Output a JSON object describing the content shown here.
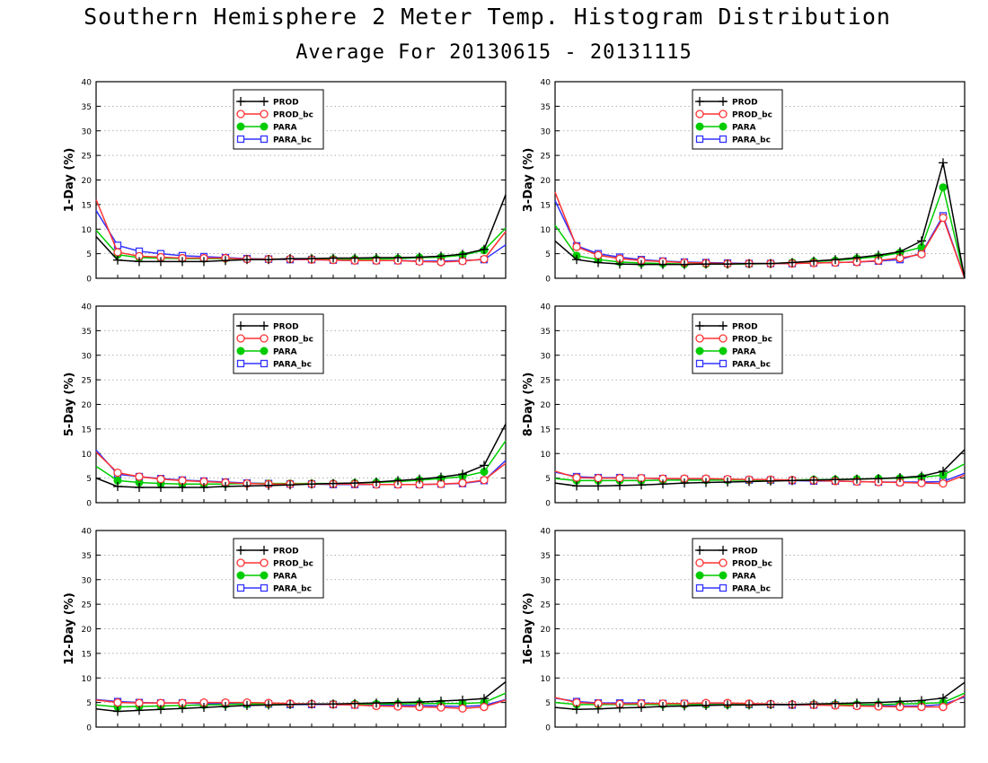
{
  "figure": {
    "title": "Southern Hemisphere 2 Meter Temp. Histogram Distribution",
    "subtitle": "Average For 20130615 - 20131115"
  },
  "legend_entries": [
    "PROD",
    "PROD_bc",
    "PARA",
    "PARA_bc"
  ],
  "series_styles": [
    {
      "name": "PROD",
      "color": "#000000",
      "marker": "plus"
    },
    {
      "name": "PROD_bc",
      "color": "#ff3333",
      "marker": "open-circle"
    },
    {
      "name": "PARA",
      "color": "#00cc00",
      "marker": "filled-circle"
    },
    {
      "name": "PARA_bc",
      "color": "#3333ff",
      "marker": "open-square"
    }
  ],
  "chart_data": [
    {
      "type": "line",
      "ylabel": "1-Day (%)",
      "ylim": [
        0,
        40
      ],
      "yticks": [
        0,
        5,
        10,
        15,
        20,
        25,
        30,
        35,
        40
      ],
      "grid": true,
      "legend_position": "top-center",
      "x": [
        1,
        2,
        3,
        4,
        5,
        6,
        7,
        8,
        9,
        10,
        11,
        12,
        13,
        14,
        15,
        16,
        17,
        18,
        19,
        20
      ],
      "series": [
        {
          "name": "PROD",
          "values": [
            8.5,
            3.7,
            3.4,
            3.4,
            3.4,
            3.4,
            3.6,
            3.8,
            3.8,
            4.0,
            4.0,
            4.1,
            4.1,
            4.2,
            4.2,
            4.3,
            4.5,
            4.9,
            5.9,
            17.0
          ]
        },
        {
          "name": "PROD_bc",
          "values": [
            16.0,
            5.3,
            4.5,
            4.3,
            4.1,
            4.1,
            4.1,
            3.9,
            3.9,
            3.9,
            3.8,
            3.7,
            3.6,
            3.6,
            3.6,
            3.4,
            3.3,
            3.5,
            3.9,
            9.5
          ]
        },
        {
          "name": "PARA",
          "values": [
            9.8,
            4.8,
            4.2,
            4.1,
            4.0,
            4.0,
            4.0,
            3.9,
            3.9,
            3.9,
            3.9,
            3.9,
            3.9,
            3.9,
            4.0,
            4.2,
            4.3,
            4.7,
            5.7,
            10.2
          ]
        },
        {
          "name": "PARA_bc",
          "values": [
            13.8,
            6.7,
            5.5,
            5.0,
            4.6,
            4.4,
            4.2,
            4.0,
            3.9,
            3.8,
            3.8,
            3.7,
            3.6,
            3.6,
            3.6,
            3.5,
            3.5,
            3.6,
            3.8,
            6.8
          ]
        }
      ]
    },
    {
      "type": "line",
      "ylabel": "3-Day (%)",
      "ylim": [
        0,
        40
      ],
      "yticks": [
        0,
        5,
        10,
        15,
        20,
        25,
        30,
        35,
        40
      ],
      "grid": true,
      "legend_position": "top-center",
      "x": [
        1,
        2,
        3,
        4,
        5,
        6,
        7,
        8,
        9,
        10,
        11,
        12,
        13,
        14,
        15,
        16,
        17,
        18,
        19,
        20
      ],
      "series": [
        {
          "name": "PROD",
          "values": [
            7.6,
            3.8,
            3.2,
            2.9,
            2.8,
            2.8,
            2.8,
            2.9,
            2.9,
            3.0,
            3.0,
            3.2,
            3.5,
            3.8,
            4.2,
            4.7,
            5.4,
            7.6,
            23.5,
            0
          ]
        },
        {
          "name": "PROD_bc",
          "values": [
            17.5,
            6.4,
            4.7,
            4.0,
            3.6,
            3.4,
            3.2,
            3.1,
            3.0,
            3.0,
            3.0,
            3.0,
            3.1,
            3.2,
            3.3,
            3.6,
            4.1,
            4.9,
            12.3,
            0
          ]
        },
        {
          "name": "PARA",
          "values": [
            10.8,
            4.6,
            3.8,
            3.3,
            3.1,
            3.0,
            2.9,
            2.9,
            2.9,
            2.9,
            3.0,
            3.2,
            3.4,
            3.6,
            4.0,
            4.4,
            5.2,
            6.3,
            18.5,
            0
          ]
        },
        {
          "name": "PARA_bc",
          "values": [
            15.8,
            6.6,
            5.0,
            4.3,
            3.8,
            3.5,
            3.3,
            3.2,
            3.1,
            3.0,
            3.0,
            3.0,
            3.1,
            3.2,
            3.3,
            3.5,
            3.8,
            5.1,
            12.7,
            0
          ]
        }
      ]
    },
    {
      "type": "line",
      "ylabel": "5-Day (%)",
      "ylim": [
        0,
        40
      ],
      "yticks": [
        0,
        5,
        10,
        15,
        20,
        25,
        30,
        35,
        40
      ],
      "grid": true,
      "legend_position": "top-center",
      "x": [
        1,
        2,
        3,
        4,
        5,
        6,
        7,
        8,
        9,
        10,
        11,
        12,
        13,
        14,
        15,
        16,
        17,
        18,
        19,
        20
      ],
      "series": [
        {
          "name": "PROD",
          "values": [
            5.0,
            3.3,
            3.1,
            3.1,
            3.1,
            3.1,
            3.3,
            3.4,
            3.5,
            3.6,
            3.8,
            3.9,
            4.0,
            4.2,
            4.5,
            4.8,
            5.2,
            5.8,
            7.6,
            16.0
          ]
        },
        {
          "name": "PROD_bc",
          "values": [
            10.3,
            6.1,
            5.3,
            4.8,
            4.5,
            4.3,
            4.1,
            3.9,
            3.8,
            3.8,
            3.8,
            3.8,
            3.8,
            3.7,
            3.7,
            3.7,
            3.8,
            4.0,
            4.6,
            8.0
          ]
        },
        {
          "name": "PARA",
          "values": [
            7.4,
            4.5,
            4.1,
            3.9,
            3.8,
            3.8,
            3.8,
            3.9,
            3.9,
            3.9,
            3.9,
            3.9,
            4.0,
            4.1,
            4.3,
            4.6,
            4.9,
            5.3,
            6.3,
            12.6
          ]
        },
        {
          "name": "PARA_bc",
          "values": [
            10.7,
            5.8,
            5.3,
            4.9,
            4.6,
            4.4,
            4.2,
            4.0,
            3.9,
            3.8,
            3.8,
            3.7,
            3.7,
            3.7,
            3.7,
            3.7,
            3.8,
            3.9,
            4.5,
            8.6
          ]
        }
      ]
    },
    {
      "type": "line",
      "ylabel": "8-Day (%)",
      "ylim": [
        0,
        40
      ],
      "yticks": [
        0,
        5,
        10,
        15,
        20,
        25,
        30,
        35,
        40
      ],
      "grid": true,
      "legend_position": "top-center",
      "x": [
        1,
        2,
        3,
        4,
        5,
        6,
        7,
        8,
        9,
        10,
        11,
        12,
        13,
        14,
        15,
        16,
        17,
        18,
        19,
        20
      ],
      "series": [
        {
          "name": "PROD",
          "values": [
            4.0,
            3.4,
            3.4,
            3.5,
            3.6,
            3.8,
            4.0,
            4.1,
            4.2,
            4.3,
            4.4,
            4.5,
            4.6,
            4.7,
            4.8,
            4.9,
            5.1,
            5.4,
            6.4,
            10.8
          ]
        },
        {
          "name": "PROD_bc",
          "values": [
            6.4,
            5.1,
            5.0,
            5.0,
            5.0,
            4.9,
            4.9,
            4.9,
            4.8,
            4.7,
            4.7,
            4.6,
            4.5,
            4.4,
            4.3,
            4.2,
            4.1,
            4.0,
            3.9,
            5.6
          ]
        },
        {
          "name": "PARA",
          "values": [
            4.9,
            4.5,
            4.5,
            4.5,
            4.5,
            4.6,
            4.6,
            4.6,
            4.6,
            4.6,
            4.6,
            4.6,
            4.7,
            4.7,
            4.8,
            4.9,
            5.0,
            5.2,
            5.6,
            7.9
          ]
        },
        {
          "name": "PARA_bc",
          "values": [
            6.2,
            5.3,
            5.1,
            5.1,
            5.0,
            4.9,
            4.8,
            4.8,
            4.7,
            4.6,
            4.6,
            4.5,
            4.4,
            4.4,
            4.3,
            4.2,
            4.2,
            4.2,
            4.3,
            6.0
          ]
        }
      ]
    },
    {
      "type": "line",
      "ylabel": "12-Day (%)",
      "ylim": [
        0,
        40
      ],
      "yticks": [
        0,
        5,
        10,
        15,
        20,
        25,
        30,
        35,
        40
      ],
      "grid": true,
      "legend_position": "top-center",
      "x": [
        1,
        2,
        3,
        4,
        5,
        6,
        7,
        8,
        9,
        10,
        11,
        12,
        13,
        14,
        15,
        16,
        17,
        18,
        19,
        20
      ],
      "series": [
        {
          "name": "PROD",
          "values": [
            3.7,
            3.2,
            3.4,
            3.6,
            3.8,
            4.0,
            4.2,
            4.4,
            4.5,
            4.6,
            4.7,
            4.7,
            4.8,
            4.9,
            5.0,
            5.1,
            5.3,
            5.5,
            5.8,
            9.2
          ]
        },
        {
          "name": "PROD_bc",
          "values": [
            5.5,
            5.0,
            4.9,
            4.9,
            4.9,
            5.0,
            5.0,
            5.0,
            4.9,
            4.8,
            4.7,
            4.6,
            4.5,
            4.3,
            4.2,
            4.1,
            4.0,
            3.8,
            4.1,
            5.5
          ]
        },
        {
          "name": "PARA",
          "values": [
            4.5,
            4.1,
            4.2,
            4.3,
            4.4,
            4.5,
            4.6,
            4.7,
            4.7,
            4.7,
            4.7,
            4.7,
            4.7,
            4.7,
            4.7,
            4.8,
            4.8,
            4.8,
            5.0,
            6.9
          ]
        },
        {
          "name": "PARA_bc",
          "values": [
            5.6,
            5.2,
            5.0,
            4.9,
            4.9,
            4.8,
            4.8,
            4.7,
            4.7,
            4.6,
            4.6,
            4.6,
            4.5,
            4.5,
            4.4,
            4.4,
            4.3,
            4.2,
            4.4,
            5.6
          ]
        }
      ]
    },
    {
      "type": "line",
      "ylabel": "16-Day (%)",
      "ylim": [
        0,
        40
      ],
      "yticks": [
        0,
        5,
        10,
        15,
        20,
        25,
        30,
        35,
        40
      ],
      "grid": true,
      "legend_position": "top-center",
      "x": [
        1,
        2,
        3,
        4,
        5,
        6,
        7,
        8,
        9,
        10,
        11,
        12,
        13,
        14,
        15,
        16,
        17,
        18,
        19,
        20
      ],
      "series": [
        {
          "name": "PROD",
          "values": [
            4.0,
            3.6,
            3.7,
            3.9,
            4.0,
            4.2,
            4.3,
            4.4,
            4.5,
            4.5,
            4.6,
            4.6,
            4.7,
            4.8,
            4.9,
            5.0,
            5.2,
            5.4,
            5.9,
            9.1
          ]
        },
        {
          "name": "PROD_bc",
          "values": [
            6.0,
            5.0,
            4.8,
            4.7,
            4.8,
            4.8,
            4.8,
            4.9,
            4.9,
            4.8,
            4.7,
            4.6,
            4.5,
            4.4,
            4.3,
            4.2,
            4.1,
            4.1,
            4.1,
            6.4
          ]
        },
        {
          "name": "PARA",
          "values": [
            5.0,
            4.6,
            4.6,
            4.6,
            4.6,
            4.6,
            4.6,
            4.6,
            4.6,
            4.6,
            4.6,
            4.6,
            4.6,
            4.6,
            4.6,
            4.6,
            4.7,
            4.8,
            5.0,
            6.9
          ]
        },
        {
          "name": "PARA_bc",
          "values": [
            5.9,
            5.2,
            4.9,
            4.9,
            4.9,
            4.8,
            4.8,
            4.7,
            4.7,
            4.6,
            4.6,
            4.5,
            4.5,
            4.5,
            4.4,
            4.4,
            4.3,
            4.3,
            4.6,
            6.1
          ]
        }
      ]
    }
  ]
}
